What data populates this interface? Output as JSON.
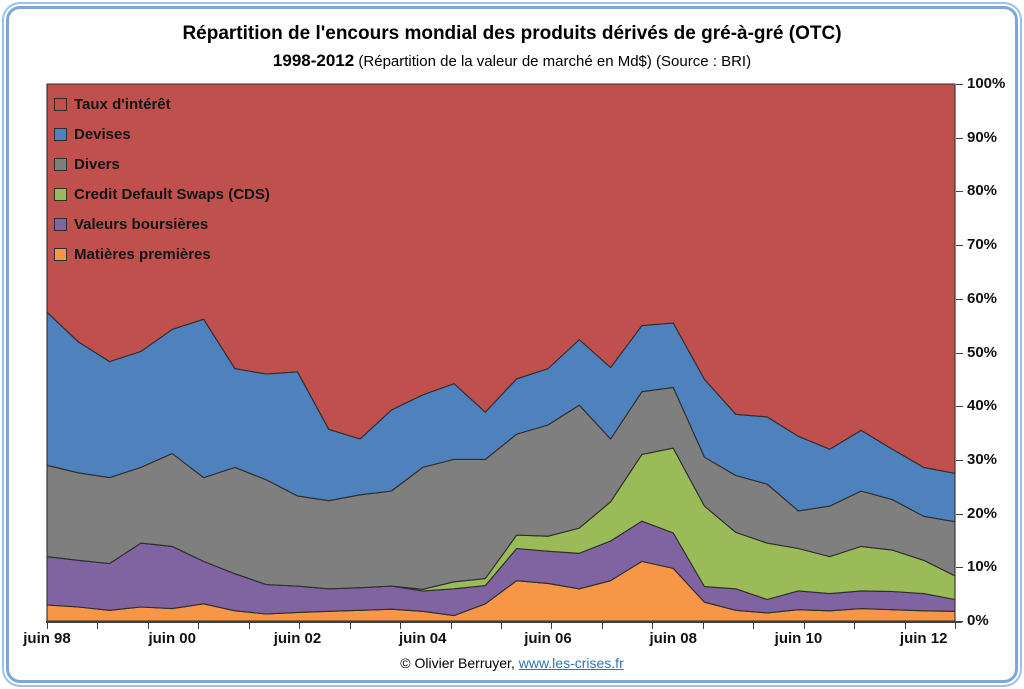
{
  "title": {
    "line1": "Répartition de l'encours mondial des produits dérivés de gré-à-gré (OTC)",
    "line2_bold": "1998-2012",
    "line2_rest": " (Répartition de la valeur de marché en Md$) (Source : BRI)"
  },
  "footer": {
    "copyright": "© Olivier Berruyer, ",
    "link": "www.les-crises.fr"
  },
  "colors": {
    "taux_interet": "#C0504D",
    "devises": "#4F81BD",
    "divers": "#7F7F7F",
    "cds": "#9BBB59",
    "valeurs_boursieres": "#8064A2",
    "matieres_premieres": "#F79646",
    "frame_border": "#7DA7D8",
    "link": "#2E75B6",
    "area_outline": "#2D2D2D"
  },
  "legend": {
    "items": [
      {
        "label": "Taux d'intérêt",
        "color": "#C0504D"
      },
      {
        "label": "Devises",
        "color": "#4F81BD"
      },
      {
        "label": "Divers",
        "color": "#7F7F7F"
      },
      {
        "label": "Credit Default Swaps (CDS)",
        "color": "#9BBB59"
      },
      {
        "label": "Valeurs boursières",
        "color": "#8064A2"
      },
      {
        "label": "Matières premières",
        "color": "#F79646"
      }
    ]
  },
  "axes": {
    "y_tick_labels": [
      "0%",
      "10%",
      "20%",
      "30%",
      "40%",
      "50%",
      "60%",
      "70%",
      "80%",
      "90%",
      "100%"
    ],
    "x_tick_labels_shown": [
      "juin 98",
      "juin 00",
      "juin 02",
      "juin 04",
      "juin 06",
      "juin 08",
      "juin 10",
      "juin 12"
    ]
  },
  "chart_data": {
    "type": "area",
    "stacked": true,
    "unit": "percent",
    "ylim": [
      0,
      100
    ],
    "grid": false,
    "legend_position": "top-left-inside",
    "x": [
      "juin 98",
      "déc 98",
      "juin 99",
      "déc 99",
      "juin 00",
      "déc 00",
      "juin 01",
      "déc 01",
      "juin 02",
      "déc 02",
      "juin 03",
      "déc 03",
      "juin 04",
      "déc 04",
      "juin 05",
      "déc 05",
      "juin 06",
      "déc 06",
      "juin 07",
      "déc 07",
      "juin 08",
      "déc 08",
      "juin 09",
      "déc 09",
      "juin 10",
      "déc 10",
      "juin 11",
      "déc 11",
      "juin 12",
      "déc 12"
    ],
    "series": [
      {
        "name": "Matières premières",
        "color": "#F79646",
        "values": [
          3.0,
          2.6,
          2.0,
          2.6,
          2.3,
          3.2,
          1.9,
          1.3,
          1.6,
          1.8,
          2.0,
          2.2,
          1.8,
          1.0,
          3.2,
          7.5,
          7.0,
          6.0,
          7.5,
          11.1,
          9.8,
          3.5,
          2.0,
          1.5,
          2.1,
          1.9,
          2.3,
          2.1,
          1.9,
          1.8
        ]
      },
      {
        "name": "Valeurs boursières",
        "color": "#8064A2",
        "values": [
          9.0,
          8.7,
          8.7,
          11.9,
          11.6,
          7.9,
          6.9,
          5.5,
          4.9,
          4.2,
          4.2,
          4.3,
          3.8,
          5.0,
          3.4,
          6.0,
          6.0,
          6.6,
          7.4,
          7.5,
          6.6,
          2.9,
          4.0,
          2.5,
          3.5,
          3.2,
          3.3,
          3.4,
          3.2,
          2.2
        ]
      },
      {
        "name": "Credit Default Swaps (CDS)",
        "color": "#9BBB59",
        "values": [
          0,
          0,
          0,
          0,
          0,
          0,
          0,
          0,
          0,
          0,
          0,
          0,
          0.3,
          1.3,
          1.3,
          2.5,
          2.8,
          4.7,
          7.3,
          12.4,
          15.8,
          15.0,
          10.5,
          10.5,
          7.9,
          6.9,
          8.3,
          7.7,
          6.2,
          4.4
        ]
      },
      {
        "name": "Divers",
        "color": "#7F7F7F",
        "values": [
          17.0,
          16.3,
          16.0,
          14.1,
          17.3,
          15.6,
          19.8,
          19.5,
          16.8,
          16.4,
          17.3,
          17.7,
          22.7,
          22.8,
          22.2,
          18.8,
          20.7,
          22.9,
          11.7,
          11.7,
          11.3,
          9.1,
          10.6,
          11.0,
          7.0,
          9.4,
          10.3,
          9.4,
          8.2,
          10.1
        ]
      },
      {
        "name": "Devises",
        "color": "#4F81BD",
        "values": [
          28.5,
          24.4,
          21.6,
          21.6,
          23.1,
          29.5,
          18.4,
          19.7,
          23.1,
          13.3,
          10.4,
          15.1,
          13.5,
          14.1,
          8.8,
          10.3,
          10.5,
          12.2,
          13.3,
          12.3,
          12.0,
          14.5,
          11.4,
          12.5,
          13.9,
          10.6,
          11.3,
          9.4,
          9.1,
          9.0
        ]
      },
      {
        "name": "Taux d'intérêt",
        "color": "#C0504D",
        "values": [
          42.5,
          48.0,
          51.7,
          49.8,
          45.7,
          43.8,
          53.0,
          54.0,
          53.6,
          64.3,
          66.1,
          60.7,
          57.9,
          55.8,
          61.1,
          54.9,
          53.0,
          47.6,
          52.8,
          45.0,
          44.5,
          55.0,
          61.5,
          62.0,
          65.6,
          68.0,
          64.5,
          68.0,
          71.4,
          72.5
        ]
      }
    ]
  }
}
